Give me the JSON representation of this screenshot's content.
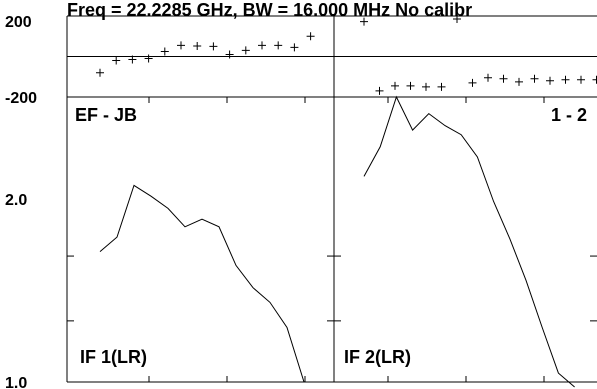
{
  "chart_data": [
    {
      "type": "scatter",
      "panel": "phase",
      "title": "Freq = 22.2285 GHz, BW = 16.000 MHz  No calibr",
      "ylim": [
        -200,
        200
      ],
      "ytick_labels": [
        "200",
        "-200"
      ],
      "series": [
        {
          "x": [
            1,
            2,
            3,
            4,
            5,
            6,
            7,
            8,
            9,
            10,
            11,
            12,
            13,
            14
          ],
          "y": [
            -80,
            -20,
            -15,
            -10,
            25,
            55,
            52,
            50,
            10,
            30,
            55,
            55,
            45,
            100
          ]
        },
        {
          "x": [
            1,
            2,
            3,
            4,
            5,
            6,
            7,
            8,
            9,
            10,
            11,
            12,
            13,
            14,
            15,
            16
          ],
          "y": [
            172,
            -170,
            -145,
            -145,
            -150,
            -150,
            185,
            -130,
            -105,
            -110,
            -125,
            -110,
            -120,
            -115,
            -115,
            -115
          ]
        }
      ]
    },
    {
      "type": "line",
      "panel": "amplitude",
      "baseline_label": "EF - JB",
      "log_scale": true,
      "ylim": [
        1.0,
        4.8
      ],
      "ytick_labels": [
        "2.0",
        "1.0"
      ],
      "series": [
        {
          "name": "IF 1(LR)",
          "x": [
            1,
            2,
            3,
            4,
            5,
            6,
            7,
            8,
            9,
            10,
            11,
            12,
            13
          ],
          "y": [
            2.05,
            2.22,
            2.95,
            2.78,
            2.6,
            2.35,
            2.45,
            2.35,
            1.9,
            1.68,
            1.55,
            1.35,
            1.0
          ]
        },
        {
          "name": "IF 2(LR)",
          "x": [
            1,
            2,
            3,
            4,
            5,
            6,
            7,
            8,
            9,
            10,
            11,
            12,
            13,
            14
          ],
          "y": [
            3.1,
            3.65,
            5.2,
            4.0,
            4.38,
            4.1,
            3.9,
            3.45,
            2.7,
            2.2,
            1.75,
            1.35,
            1.05,
            0.62
          ],
          "corner_label": "1 - 2"
        }
      ]
    }
  ]
}
